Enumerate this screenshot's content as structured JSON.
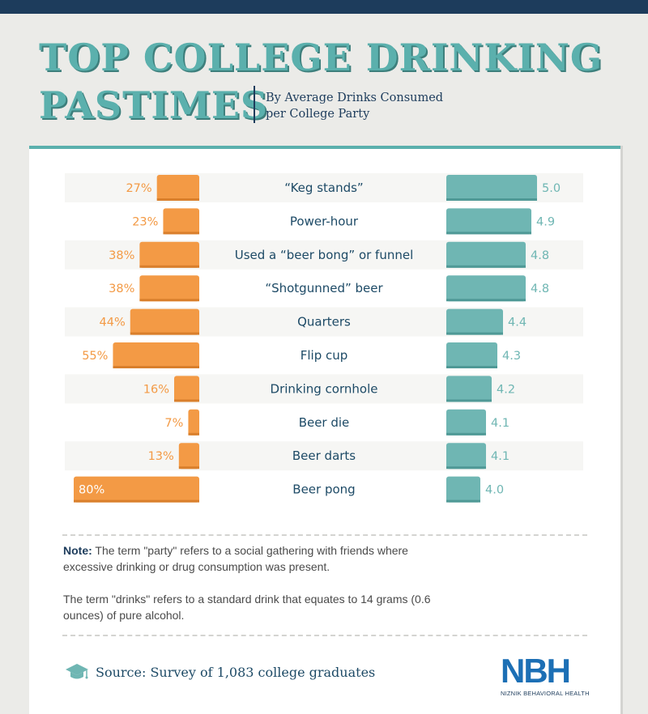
{
  "header": {
    "title_line1": "TOP COLLEGE DRINKING",
    "title_line2": "PASTIMES",
    "subtitle_line1": "By Average Drinks Consumed",
    "subtitle_line2": "per College Party"
  },
  "chart_data": {
    "type": "bar",
    "categories": [
      "“Keg stands”",
      "Power-hour",
      "Used a “beer bong” or funnel",
      "“Shotgunned” beer",
      "Quarters",
      "Flip cup",
      "Drinking cornhole",
      "Beer die",
      "Beer darts",
      "Beer pong"
    ],
    "series": [
      {
        "values": [
          27,
          23,
          38,
          38,
          44,
          55,
          16,
          7,
          13,
          80
        ],
        "labels": [
          "27%",
          "23%",
          "38%",
          "38%",
          "44%",
          "55%",
          "16%",
          "7%",
          "13%",
          "80%"
        ],
        "color": "#f39a45"
      },
      {
        "values": [
          5.0,
          4.9,
          4.8,
          4.8,
          4.4,
          4.3,
          4.2,
          4.1,
          4.1,
          4.0
        ],
        "labels": [
          "5.0",
          "4.9",
          "4.8",
          "4.8",
          "4.4",
          "4.3",
          "4.2",
          "4.1",
          "4.1",
          "4.0"
        ],
        "color": "#6fb6b3"
      }
    ],
    "left_range": [
      0,
      80
    ],
    "right_range": [
      3.4,
      5.0
    ],
    "grid": false,
    "legend": "none"
  },
  "notes": {
    "note_label": "Note:",
    "note1": " The term \"party\" refers to a social gathering with friends where excessive drinking or drug consumption was present.",
    "note2": "The term \"drinks\" refers to a standard drink that equates to 14 grams (0.6 ounces) of pure alcohol."
  },
  "footer": {
    "source": "Source: Survey of 1,083 college graduates",
    "source_icon": "graduation-cap-icon",
    "logo_mark": "NBH",
    "logo_text": "NIZNIK BEHAVIORAL HEALTH"
  },
  "colors": {
    "accent_teal": "#5bb0ad",
    "orange": "#f39a45",
    "navy": "#1d3c5c"
  }
}
